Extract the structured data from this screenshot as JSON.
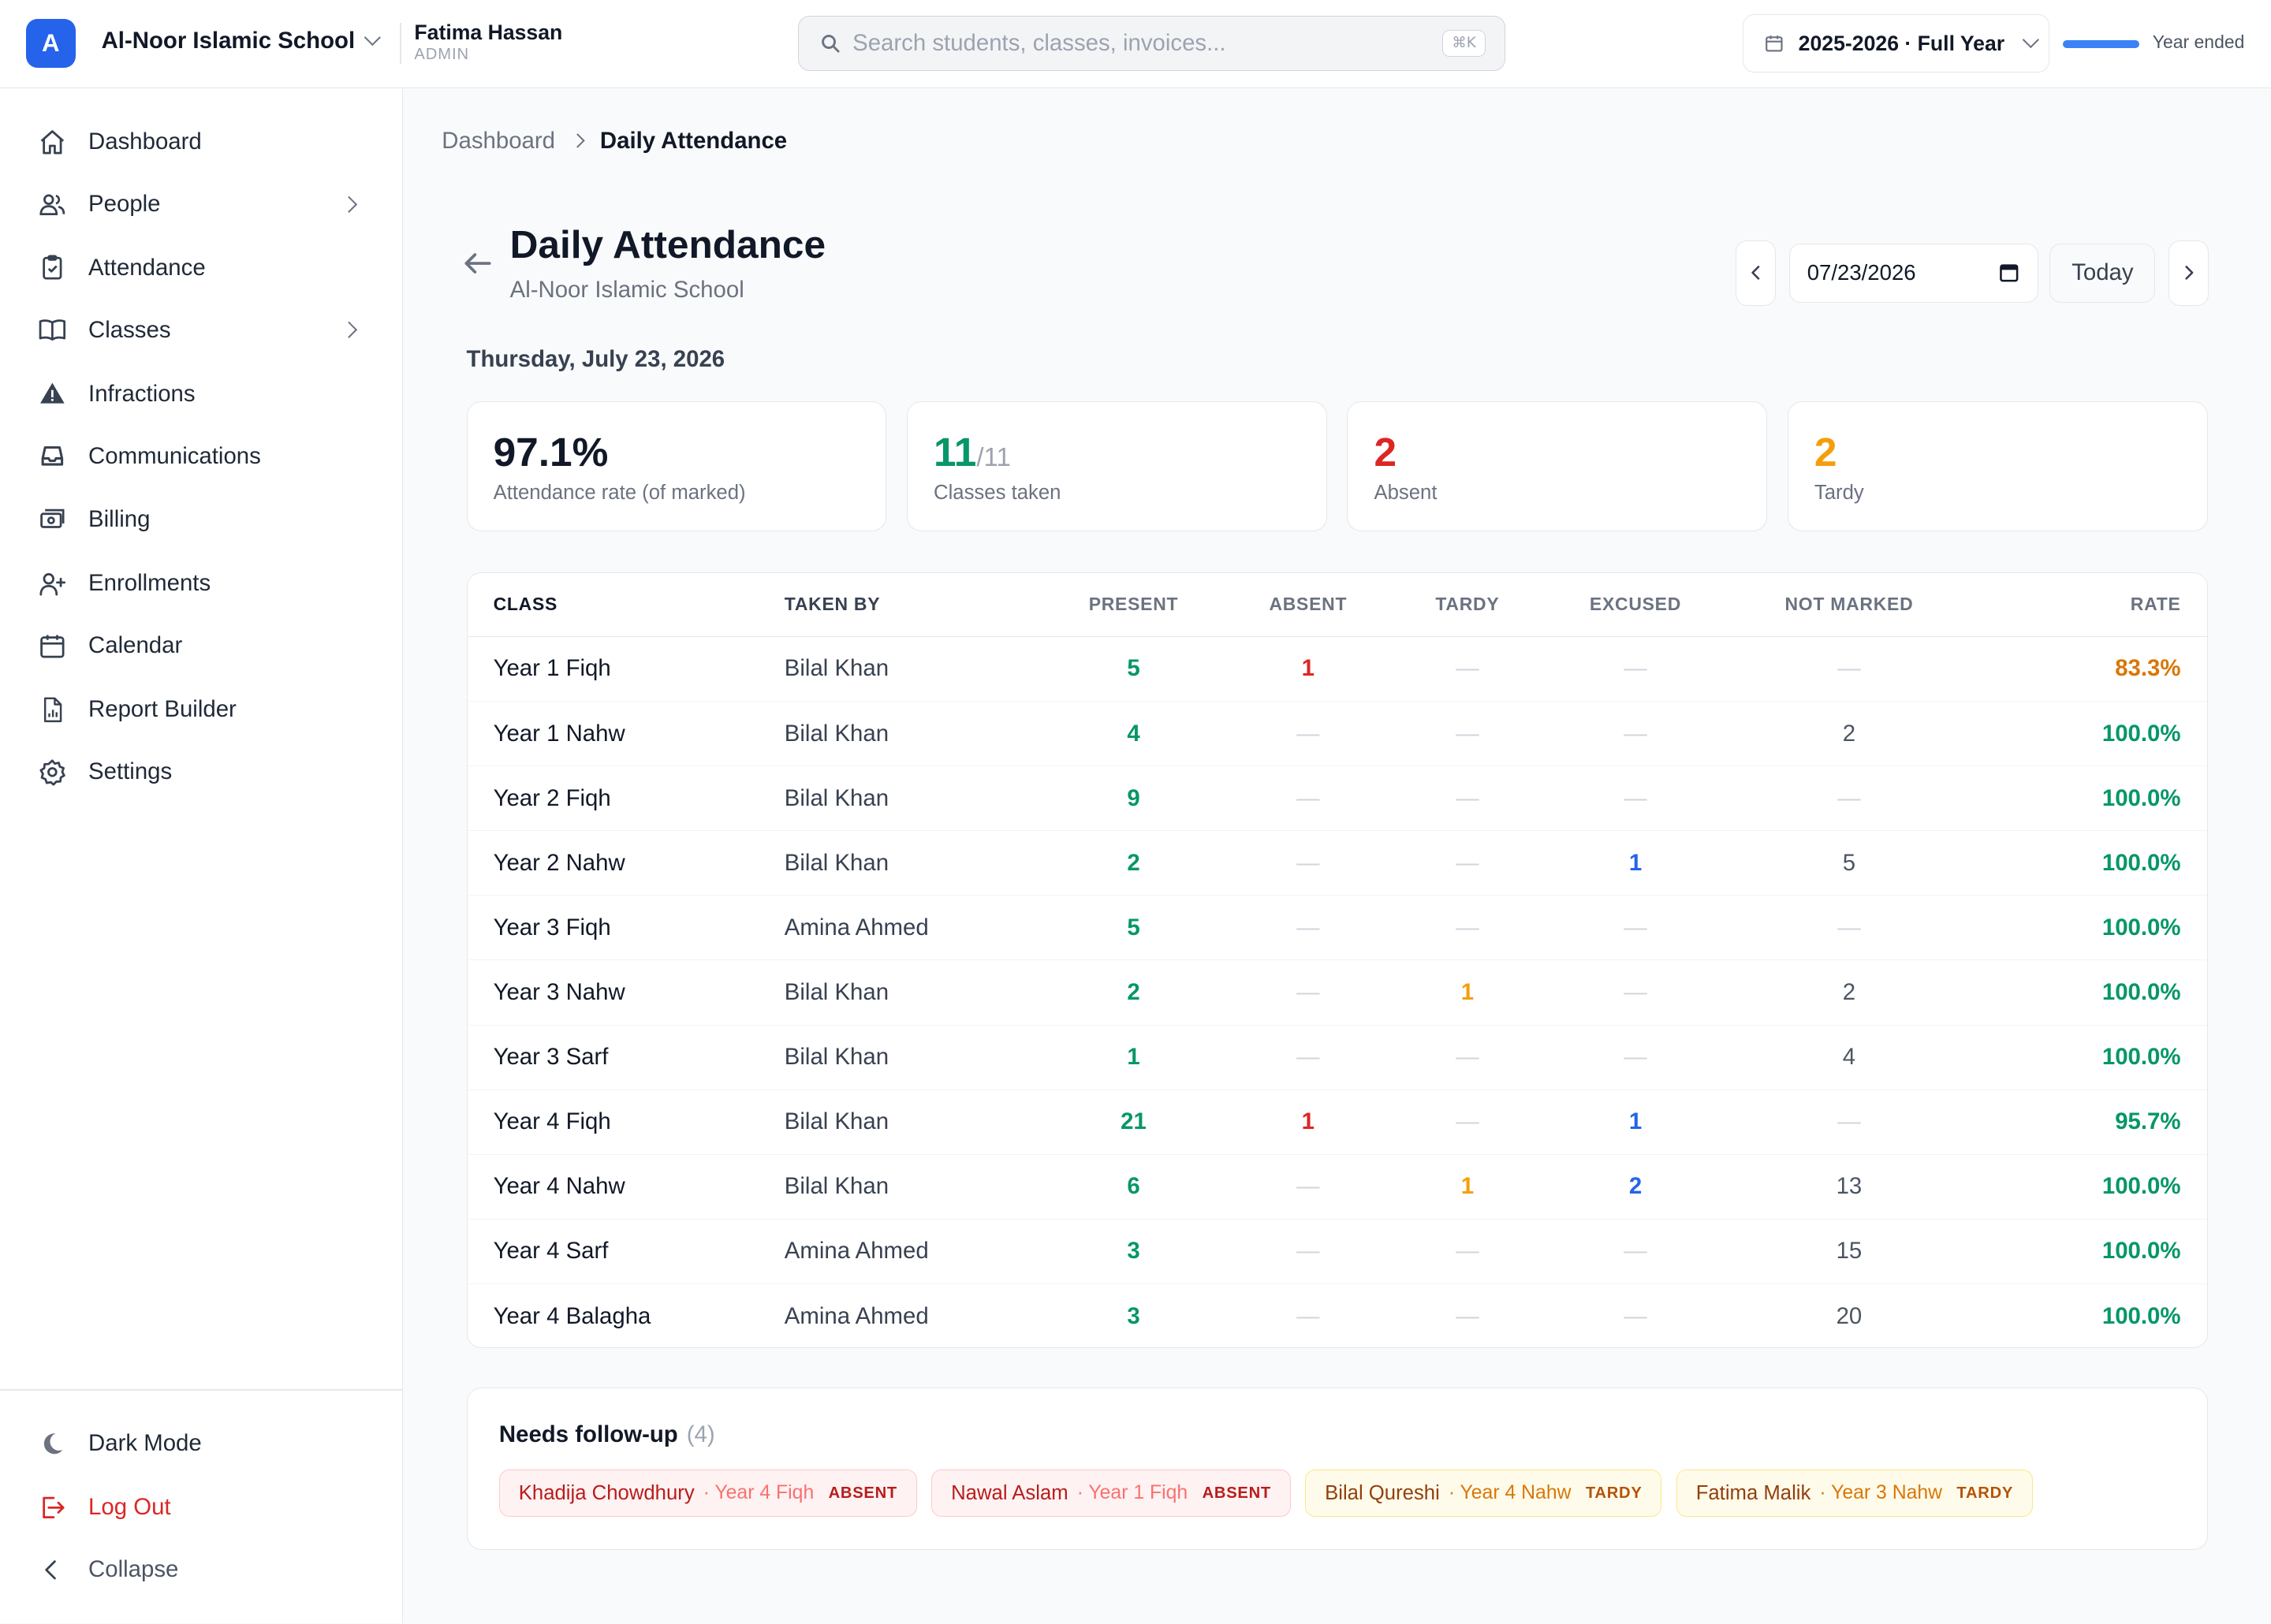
{
  "header": {
    "logo_letter": "A",
    "school_name": "Al-Noor Islamic School",
    "user_name": "Fatima Hassan",
    "user_role": "ADMIN",
    "search_placeholder": "Search students, classes, invoices...",
    "search_shortcut": "⌘K",
    "year_label": "2025-2026 · Full Year",
    "year_progress_fraction": 1.0,
    "year_status": "Year ended",
    "accent_color": "#2563eb"
  },
  "sidebar": {
    "items": [
      {
        "label": "Dashboard",
        "icon": "home-icon"
      },
      {
        "label": "People",
        "icon": "users-icon",
        "has_submenu": true
      },
      {
        "label": "Attendance",
        "icon": "clipboard-check-icon"
      },
      {
        "label": "Classes",
        "icon": "book-open-icon",
        "has_submenu": true
      },
      {
        "label": "Infractions",
        "icon": "warning-icon"
      },
      {
        "label": "Communications",
        "icon": "inbox-icon"
      },
      {
        "label": "Billing",
        "icon": "cash-icon"
      },
      {
        "label": "Enrollments",
        "icon": "user-plus-icon"
      },
      {
        "label": "Calendar",
        "icon": "calendar-icon"
      },
      {
        "label": "Report Builder",
        "icon": "report-icon"
      },
      {
        "label": "Settings",
        "icon": "gear-icon"
      }
    ],
    "footer": {
      "dark_mode": "Dark Mode",
      "log_out": "Log Out",
      "collapse": "Collapse"
    }
  },
  "breadcrumb": {
    "parent": "Dashboard",
    "current": "Daily Attendance"
  },
  "page": {
    "title": "Daily Attendance",
    "subtitle": "Al-Noor Islamic School",
    "date_value": "07/23/2026",
    "today_label": "Today",
    "day_label": "Thursday, July 23, 2026"
  },
  "stats": {
    "rate": {
      "value": "97.1%",
      "label": "Attendance rate (of marked)"
    },
    "classes": {
      "value": "11",
      "of": "/11",
      "label": "Classes taken"
    },
    "absent": {
      "value": "2",
      "label": "Absent"
    },
    "tardy": {
      "value": "2",
      "label": "Tardy"
    }
  },
  "table": {
    "headers": [
      "CLASS",
      "TAKEN BY",
      "PRESENT",
      "ABSENT",
      "TARDY",
      "EXCUSED",
      "NOT MARKED",
      "RATE"
    ],
    "rows": [
      {
        "class": "Year 1 Fiqh",
        "taken_by": "Bilal Khan",
        "present": "5",
        "absent": "1",
        "tardy": "—",
        "excused": "—",
        "not_marked": "—",
        "rate": "83.3%"
      },
      {
        "class": "Year 1 Nahw",
        "taken_by": "Bilal Khan",
        "present": "4",
        "absent": "—",
        "tardy": "—",
        "excused": "—",
        "not_marked": "2",
        "rate": "100.0%"
      },
      {
        "class": "Year 2 Fiqh",
        "taken_by": "Bilal Khan",
        "present": "9",
        "absent": "—",
        "tardy": "—",
        "excused": "—",
        "not_marked": "—",
        "rate": "100.0%"
      },
      {
        "class": "Year 2 Nahw",
        "taken_by": "Bilal Khan",
        "present": "2",
        "absent": "—",
        "tardy": "—",
        "excused": "1",
        "not_marked": "5",
        "rate": "100.0%"
      },
      {
        "class": "Year 3 Fiqh",
        "taken_by": "Amina Ahmed",
        "present": "5",
        "absent": "—",
        "tardy": "—",
        "excused": "—",
        "not_marked": "—",
        "rate": "100.0%"
      },
      {
        "class": "Year 3 Nahw",
        "taken_by": "Bilal Khan",
        "present": "2",
        "absent": "—",
        "tardy": "1",
        "excused": "—",
        "not_marked": "2",
        "rate": "100.0%"
      },
      {
        "class": "Year 3 Sarf",
        "taken_by": "Bilal Khan",
        "present": "1",
        "absent": "—",
        "tardy": "—",
        "excused": "—",
        "not_marked": "4",
        "rate": "100.0%"
      },
      {
        "class": "Year 4 Fiqh",
        "taken_by": "Bilal Khan",
        "present": "21",
        "absent": "1",
        "tardy": "—",
        "excused": "1",
        "not_marked": "—",
        "rate": "95.7%"
      },
      {
        "class": "Year 4 Nahw",
        "taken_by": "Bilal Khan",
        "present": "6",
        "absent": "—",
        "tardy": "1",
        "excused": "2",
        "not_marked": "13",
        "rate": "100.0%"
      },
      {
        "class": "Year 4 Sarf",
        "taken_by": "Amina Ahmed",
        "present": "3",
        "absent": "—",
        "tardy": "—",
        "excused": "—",
        "not_marked": "15",
        "rate": "100.0%"
      },
      {
        "class": "Year 4 Balagha",
        "taken_by": "Amina Ahmed",
        "present": "3",
        "absent": "—",
        "tardy": "—",
        "excused": "—",
        "not_marked": "20",
        "rate": "100.0%"
      }
    ]
  },
  "followup": {
    "title": "Needs follow-up",
    "count": "(4)",
    "items": [
      {
        "name": "Khadija Chowdhury",
        "class": "· Year 4 Fiqh",
        "status": "ABSENT",
        "kind": "absent"
      },
      {
        "name": "Nawal Aslam",
        "class": "· Year 1 Fiqh",
        "status": "ABSENT",
        "kind": "absent"
      },
      {
        "name": "Bilal Qureshi",
        "class": "· Year 4 Nahw",
        "status": "TARDY",
        "kind": "tardy"
      },
      {
        "name": "Fatima Malik",
        "class": "· Year 3 Nahw",
        "status": "TARDY",
        "kind": "tardy"
      }
    ]
  },
  "colors": {
    "present": "#059669",
    "absent": "#dc2626",
    "tardy": "#f59e0b",
    "excused": "#2563eb",
    "rate_warning": "#d97706"
  }
}
